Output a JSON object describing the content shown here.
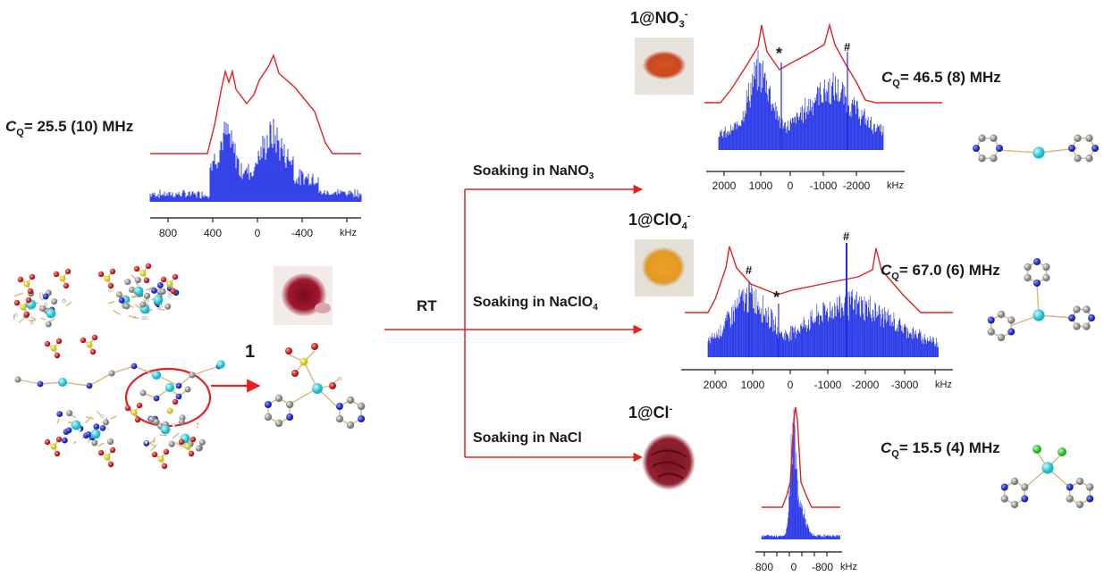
{
  "top_left_spectrum": {
    "cq_label": "C",
    "cq_sub": "Q",
    "cq_value": "= 25.5 (10) MHz",
    "axis_ticks": [
      "800",
      "400",
      "0",
      "-400"
    ],
    "axis_unit": "kHz"
  },
  "compound_1": {
    "label": "1"
  },
  "arrow_label": "RT",
  "branches": [
    {
      "label": "Soaking in NaNO",
      "sub": "3"
    },
    {
      "label": "Soaking in NaClO",
      "sub": "4"
    },
    {
      "label": "Soaking in NaCl",
      "sub": ""
    }
  ],
  "products": [
    {
      "name": "1@NO",
      "sub": "3",
      "sup": "-",
      "cq_label": "C",
      "cq_sub": "Q",
      "cq_value": "= 46.5 (8) MHz",
      "axis_ticks": [
        "2000",
        "1000",
        "0",
        "-1000",
        "-2000"
      ],
      "axis_unit": "kHz",
      "marks": [
        "*",
        "#"
      ]
    },
    {
      "name": "1@ClO",
      "sub": "4",
      "sup": "-",
      "cq_label": "C",
      "cq_sub": "Q",
      "cq_value": "= 67.0 (6) MHz",
      "axis_ticks": [
        "2000",
        "1000",
        "0",
        "-1000",
        "-2000",
        "-3000"
      ],
      "axis_unit": "kHz",
      "marks": [
        "#",
        "*",
        "#"
      ]
    },
    {
      "name": "1@Cl",
      "sub": "",
      "sup": "-",
      "cq_label": "C",
      "cq_sub": "Q",
      "cq_value": "= 15.5 (4) MHz",
      "axis_ticks": [
        "800",
        "0",
        "-800"
      ],
      "axis_unit": "kHz",
      "marks": []
    }
  ],
  "colors": {
    "spectrum_fill": "#1f2fe6",
    "simulation_line": "#e0231f",
    "arrow": "#e0231f",
    "metal_atom": "#34d2e0",
    "nitrogen": "#1f2bd0",
    "carbon": "#9a9a9a",
    "oxygen": "#d21b1b",
    "sulfur": "#e8e020",
    "chlorine": "#3ad23a"
  }
}
